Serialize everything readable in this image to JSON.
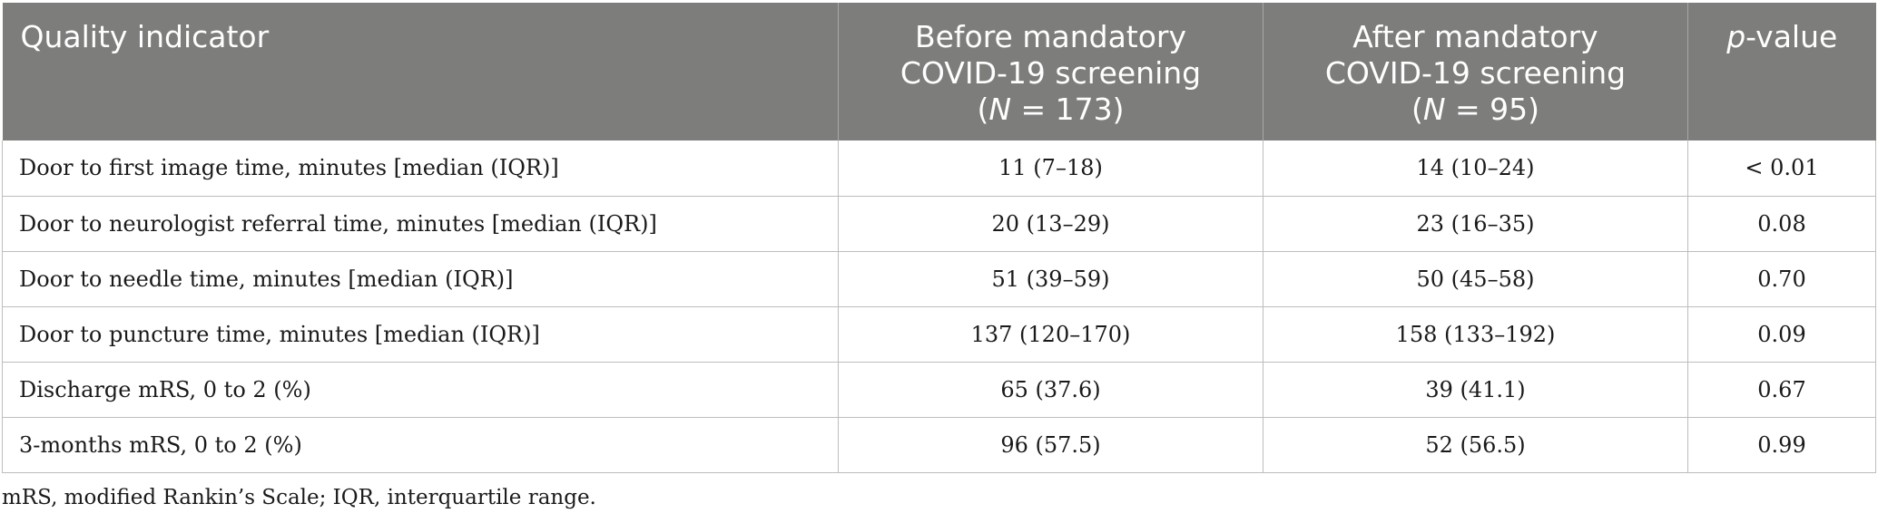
{
  "header": {
    "col1": "Quality indicator",
    "col2_line1": "Before mandatory",
    "col2_line2": "COVID-19 screening",
    "col2_n_open": "(",
    "col2_n_var": "N",
    "col2_n_rest": " = 173)",
    "col3_line1": "After mandatory",
    "col3_line2": "COVID-19 screening",
    "col3_n_open": "(",
    "col3_n_var": "N",
    "col3_n_rest": " = 95)",
    "col4_var": "p",
    "col4_rest": "-value"
  },
  "rows": [
    {
      "indicator": "Door to first image time, minutes [median (IQR)]",
      "before": "11 (7–18)",
      "after": "14 (10–24)",
      "p": "< 0.01"
    },
    {
      "indicator": "Door to neurologist referral time, minutes [median (IQR)]",
      "before": "20 (13–29)",
      "after": "23 (16–35)",
      "p": "0.08"
    },
    {
      "indicator": "Door to needle time, minutes [median (IQR)]",
      "before": "51 (39–59)",
      "after": "50 (45–58)",
      "p": "0.70"
    },
    {
      "indicator": "Door to puncture time, minutes [median (IQR)]",
      "before": "137 (120–170)",
      "after": "158 (133–192)",
      "p": "0.09"
    },
    {
      "indicator": "Discharge mRS, 0 to 2 (%)",
      "before": "65 (37.6)",
      "after": "39 (41.1)",
      "p": "0.67"
    },
    {
      "indicator": "3-months mRS, 0 to 2 (%)",
      "before": "96 (57.5)",
      "after": "52 (56.5)",
      "p": "0.99"
    }
  ],
  "footnote": "mRS, modified Rankin’s Scale; IQR, interquartile range.",
  "colors": {
    "header_bg": "#7d7e7c",
    "header_text": "#ffffff",
    "grid": "#bdbdbd"
  }
}
